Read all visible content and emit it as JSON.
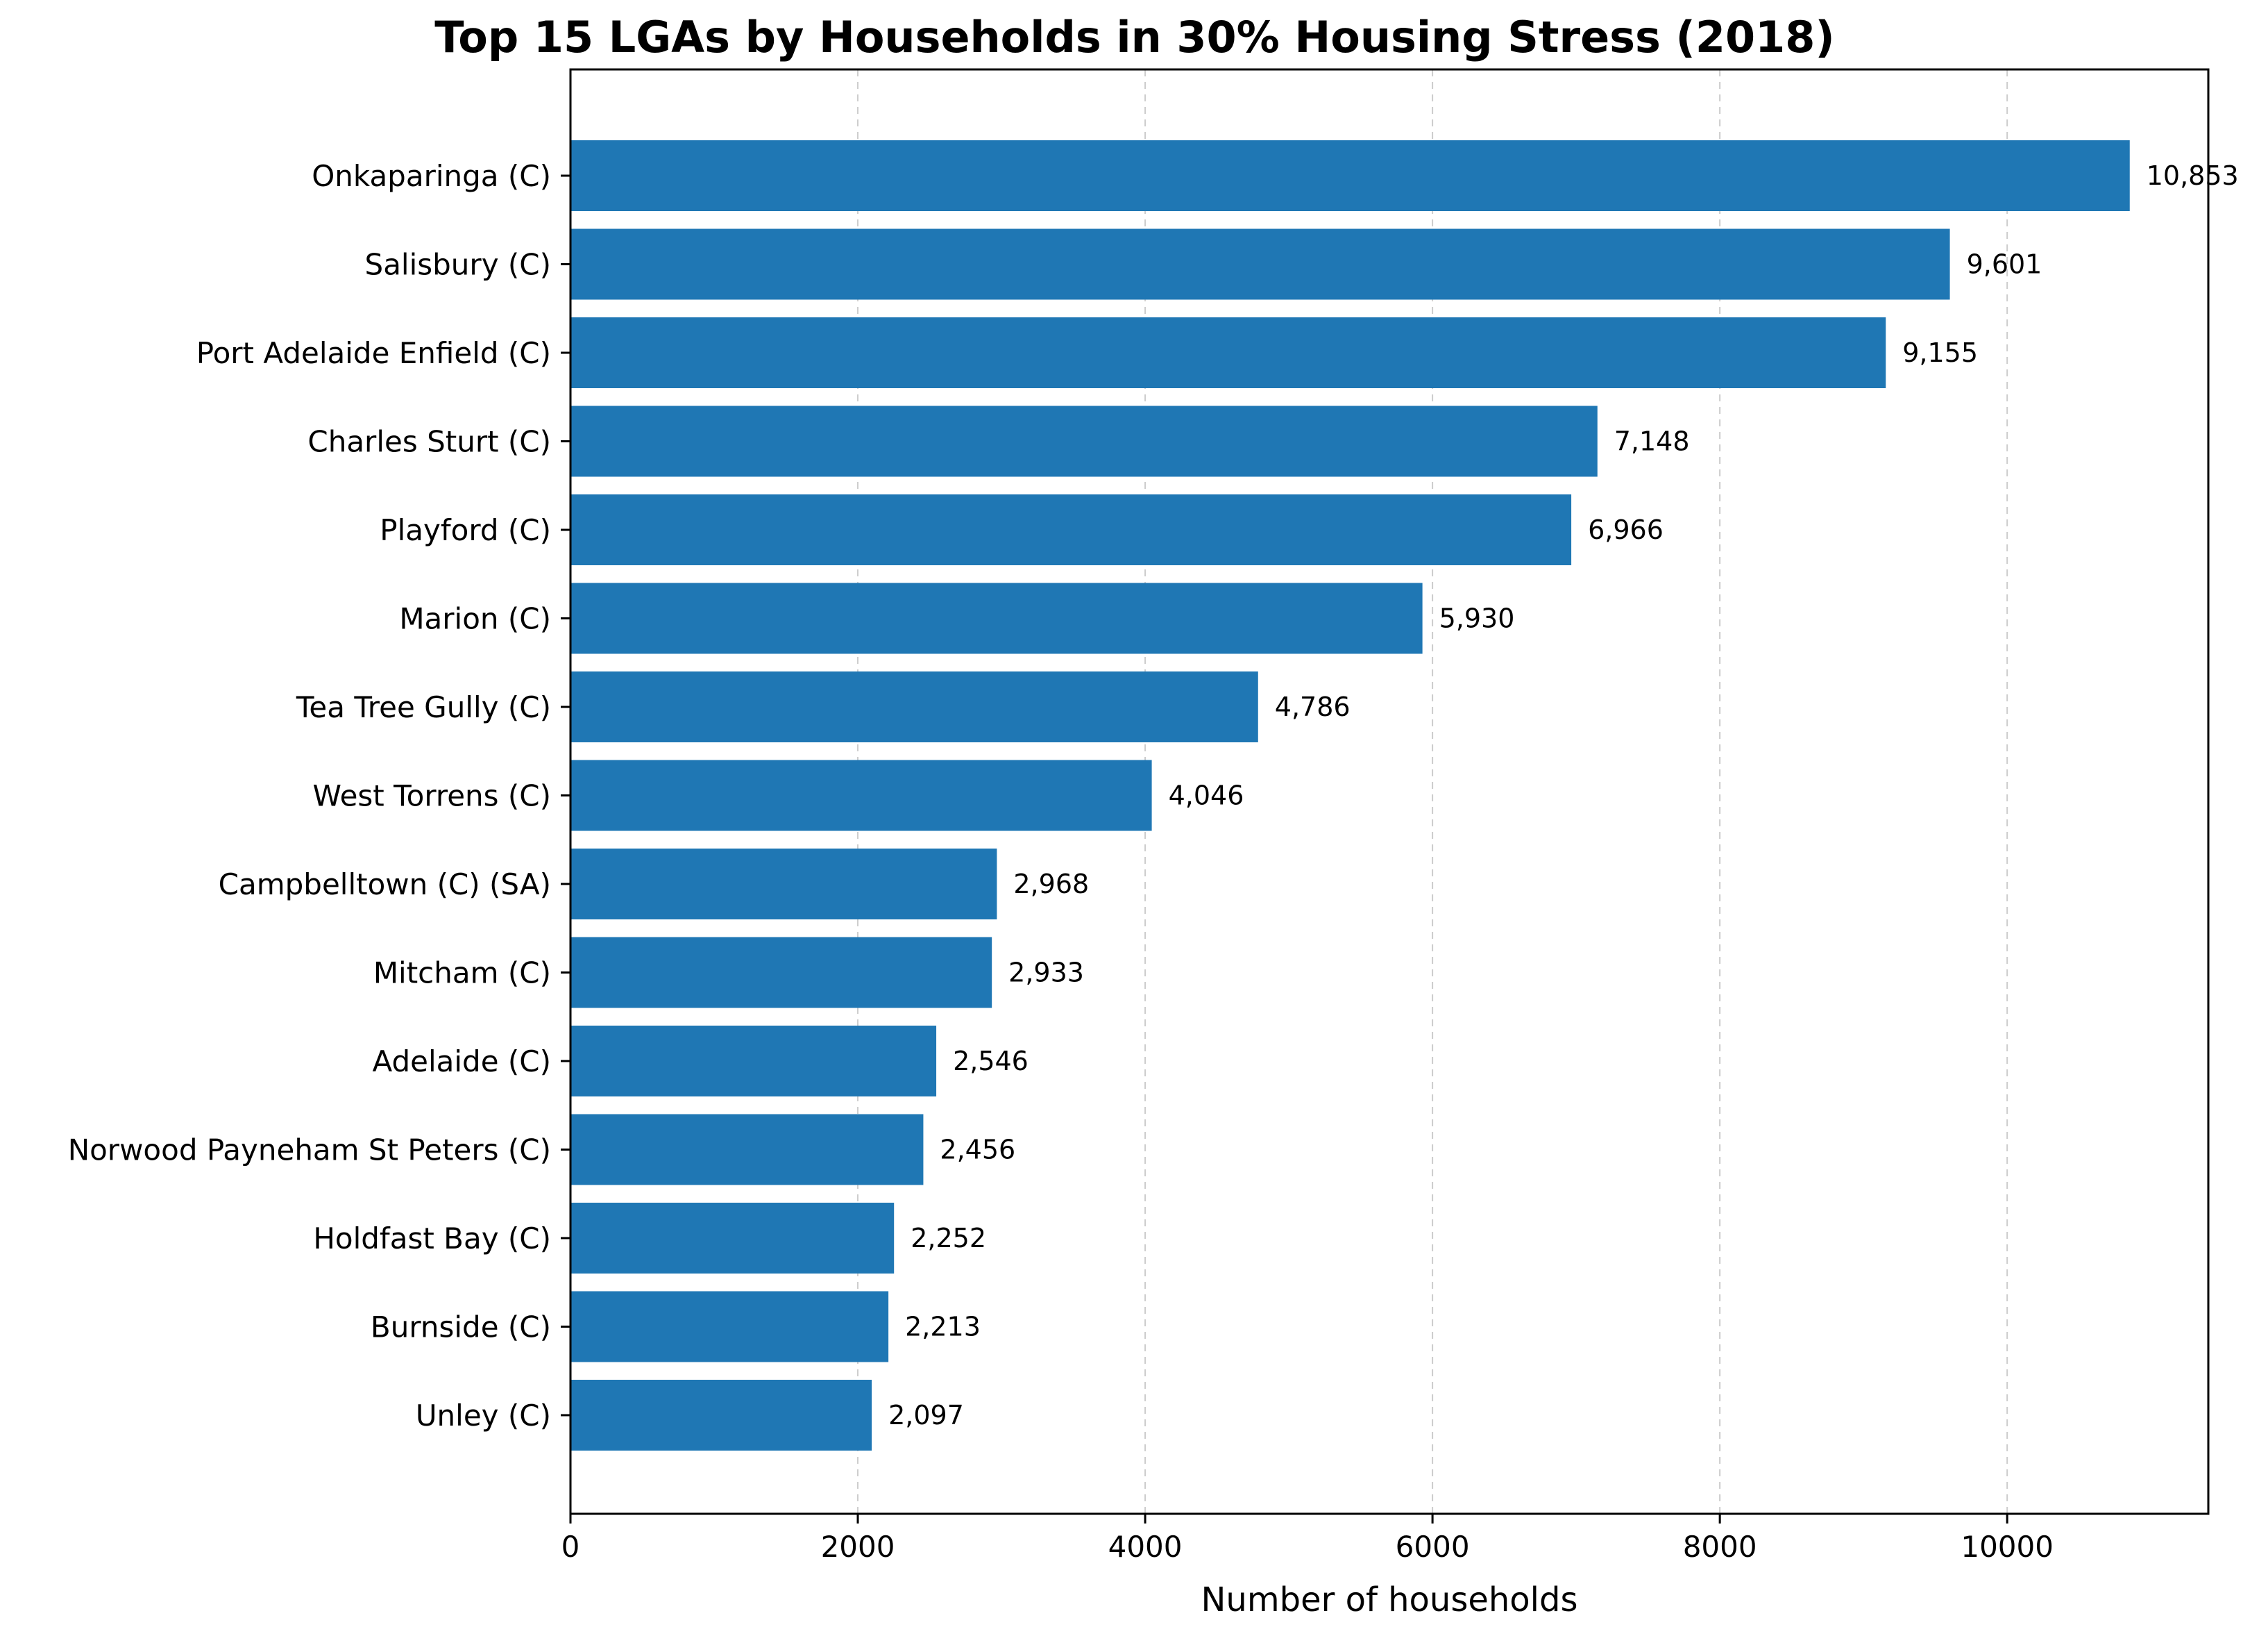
{
  "chart_data": {
    "type": "bar",
    "orientation": "horizontal",
    "title": "Top 15 LGAs by Households in 30% Housing Stress (2018)",
    "xlabel": "Number of households",
    "ylabel": "",
    "xlim": [
      0,
      11400
    ],
    "xticks": [
      0,
      2000,
      4000,
      6000,
      8000,
      10000
    ],
    "grid": "x-axis dashed",
    "bar_color": "#1f77b4",
    "categories": [
      "Onkaparinga (C)",
      "Salisbury (C)",
      "Port Adelaide Enfield (C)",
      "Charles Sturt (C)",
      "Playford (C)",
      "Marion (C)",
      "Tea Tree Gully (C)",
      "West Torrens (C)",
      "Campbelltown (C) (SA)",
      "Mitcham (C)",
      "Adelaide (C)",
      "Norwood Payneham St Peters (C)",
      "Holdfast Bay (C)",
      "Burnside (C)",
      "Unley (C)"
    ],
    "values": [
      10853,
      9601,
      9155,
      7148,
      6966,
      5930,
      4786,
      4046,
      2968,
      2933,
      2546,
      2456,
      2252,
      2213,
      2097
    ],
    "data_labels": [
      "10,853",
      "9,601",
      "9,155",
      "7,148",
      "6,966",
      "5,930",
      "4,786",
      "4,046",
      "2,968",
      "2,933",
      "2,546",
      "2,456",
      "2,252",
      "2,213",
      "2,097"
    ]
  }
}
